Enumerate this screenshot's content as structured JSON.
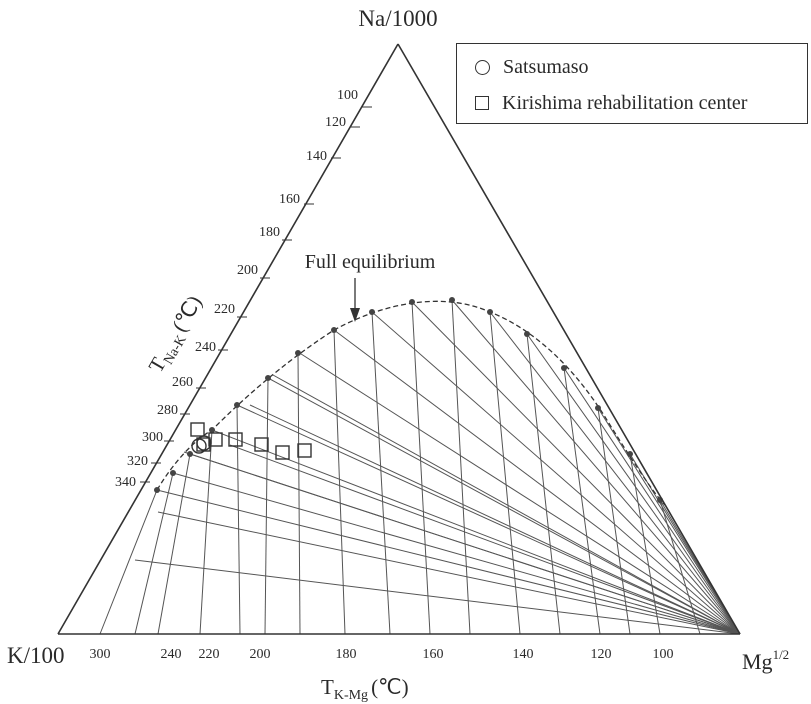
{
  "chart_data": {
    "type": "scatter",
    "subtype": "ternary Na-K-Mg giggenbach diagram",
    "vertices": {
      "top": "Na/1000",
      "left": "K/100",
      "right_base": "Mg",
      "right_sup": "1/2"
    },
    "left_axis_label": {
      "base": "T",
      "sub": "Na-K",
      "unit": "(℃)"
    },
    "bottom_axis_label": {
      "base": "T",
      "sub": "K-Mg",
      "unit": "(℃)"
    },
    "na_k_ticks": [
      "100",
      "120",
      "140",
      "160",
      "180",
      "200",
      "220",
      "240",
      "260",
      "280",
      "300",
      "320",
      "340"
    ],
    "k_mg_ticks": [
      "300",
      "240",
      "220",
      "200",
      "180",
      "160",
      "140",
      "120",
      "100"
    ],
    "annotation": "Full equilibrium",
    "legend": [
      {
        "symbol": "circle",
        "label": "Satsumaso"
      },
      {
        "symbol": "square",
        "label": "Kirishima rehabilitation center"
      }
    ],
    "series": [
      {
        "name": "Satsumaso",
        "marker": "circle",
        "count": 2
      },
      {
        "name": "Kirishima rehabilitation center",
        "marker": "square",
        "count": 7
      }
    ],
    "grid": false,
    "legend_position": "top-right"
  }
}
